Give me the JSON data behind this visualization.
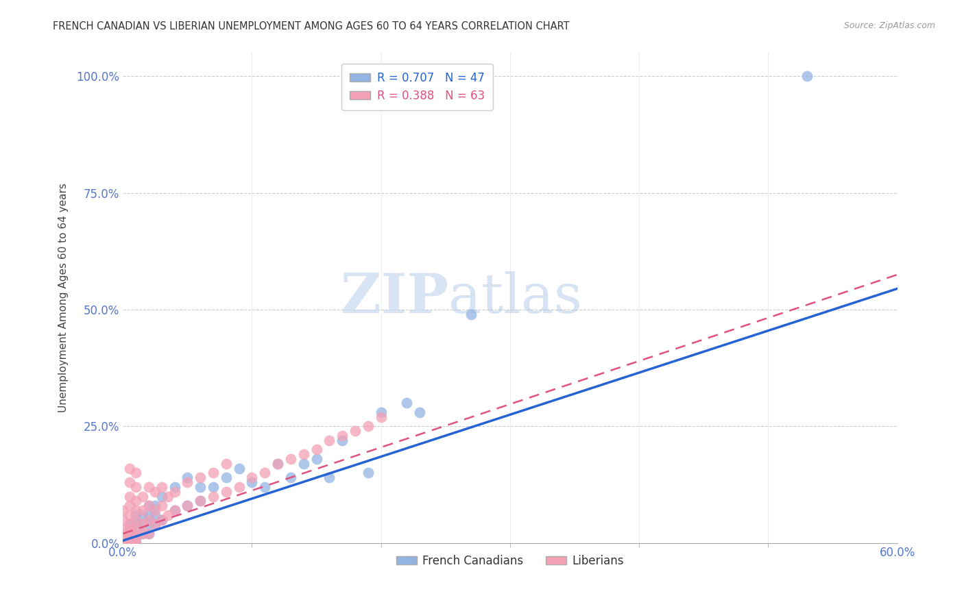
{
  "title": "FRENCH CANADIAN VS LIBERIAN UNEMPLOYMENT AMONG AGES 60 TO 64 YEARS CORRELATION CHART",
  "source": "Source: ZipAtlas.com",
  "ylabel": "Unemployment Among Ages 60 to 64 years",
  "watermark_part1": "ZIP",
  "watermark_part2": "atlas",
  "xlim": [
    0.0,
    0.6
  ],
  "ylim": [
    0.0,
    1.05
  ],
  "ytick_labels": [
    "0.0%",
    "25.0%",
    "50.0%",
    "75.0%",
    "100.0%"
  ],
  "ytick_values": [
    0.0,
    0.25,
    0.5,
    0.75,
    1.0
  ],
  "xtick_show": [
    0.0,
    0.6
  ],
  "xtick_show_labels": [
    "0.0%",
    "60.0%"
  ],
  "xtick_minor": [
    0.1,
    0.2,
    0.3,
    0.4,
    0.5
  ],
  "french_canadian_R": 0.707,
  "french_canadian_N": 47,
  "liberian_R": 0.388,
  "liberian_N": 63,
  "french_canadian_color": "#92b4e3",
  "liberian_color": "#f4a0b5",
  "french_canadian_line_color": "#2563d4",
  "liberian_line_color": "#e05080",
  "axis_color": "#5577cc",
  "grid_color": "#cccccc",
  "french_canadians_x": [
    0.005,
    0.005,
    0.005,
    0.005,
    0.005,
    0.005,
    0.005,
    0.01,
    0.01,
    0.01,
    0.01,
    0.01,
    0.015,
    0.015,
    0.015,
    0.02,
    0.02,
    0.02,
    0.02,
    0.025,
    0.025,
    0.025,
    0.03,
    0.03,
    0.04,
    0.04,
    0.05,
    0.05,
    0.06,
    0.06,
    0.07,
    0.08,
    0.09,
    0.1,
    0.11,
    0.12,
    0.13,
    0.14,
    0.15,
    0.16,
    0.17,
    0.19,
    0.2,
    0.22,
    0.23,
    0.27,
    0.53
  ],
  "french_canadians_y": [
    0.0,
    0.005,
    0.01,
    0.015,
    0.02,
    0.03,
    0.04,
    0.0,
    0.01,
    0.02,
    0.04,
    0.06,
    0.02,
    0.04,
    0.06,
    0.02,
    0.04,
    0.06,
    0.08,
    0.04,
    0.06,
    0.08,
    0.05,
    0.1,
    0.07,
    0.12,
    0.08,
    0.14,
    0.09,
    0.12,
    0.12,
    0.14,
    0.16,
    0.13,
    0.12,
    0.17,
    0.14,
    0.17,
    0.18,
    0.14,
    0.22,
    0.15,
    0.28,
    0.3,
    0.28,
    0.49,
    1.0
  ],
  "liberians_x": [
    0.0,
    0.0,
    0.0,
    0.0,
    0.0,
    0.0,
    0.005,
    0.005,
    0.005,
    0.005,
    0.005,
    0.005,
    0.005,
    0.005,
    0.005,
    0.005,
    0.01,
    0.01,
    0.01,
    0.01,
    0.01,
    0.01,
    0.01,
    0.01,
    0.01,
    0.015,
    0.015,
    0.015,
    0.015,
    0.02,
    0.02,
    0.02,
    0.02,
    0.025,
    0.025,
    0.025,
    0.03,
    0.03,
    0.03,
    0.035,
    0.035,
    0.04,
    0.04,
    0.05,
    0.05,
    0.06,
    0.06,
    0.07,
    0.07,
    0.08,
    0.08,
    0.09,
    0.1,
    0.11,
    0.12,
    0.13,
    0.14,
    0.15,
    0.16,
    0.17,
    0.18,
    0.19,
    0.2
  ],
  "liberians_y": [
    0.0,
    0.01,
    0.02,
    0.03,
    0.05,
    0.07,
    0.0,
    0.01,
    0.02,
    0.03,
    0.04,
    0.06,
    0.08,
    0.1,
    0.13,
    0.16,
    0.0,
    0.01,
    0.02,
    0.03,
    0.05,
    0.07,
    0.09,
    0.12,
    0.15,
    0.02,
    0.04,
    0.07,
    0.1,
    0.02,
    0.05,
    0.08,
    0.12,
    0.04,
    0.07,
    0.11,
    0.05,
    0.08,
    0.12,
    0.06,
    0.1,
    0.07,
    0.11,
    0.08,
    0.13,
    0.09,
    0.14,
    0.1,
    0.15,
    0.11,
    0.17,
    0.12,
    0.14,
    0.15,
    0.17,
    0.18,
    0.19,
    0.2,
    0.22,
    0.23,
    0.24,
    0.25,
    0.27
  ]
}
